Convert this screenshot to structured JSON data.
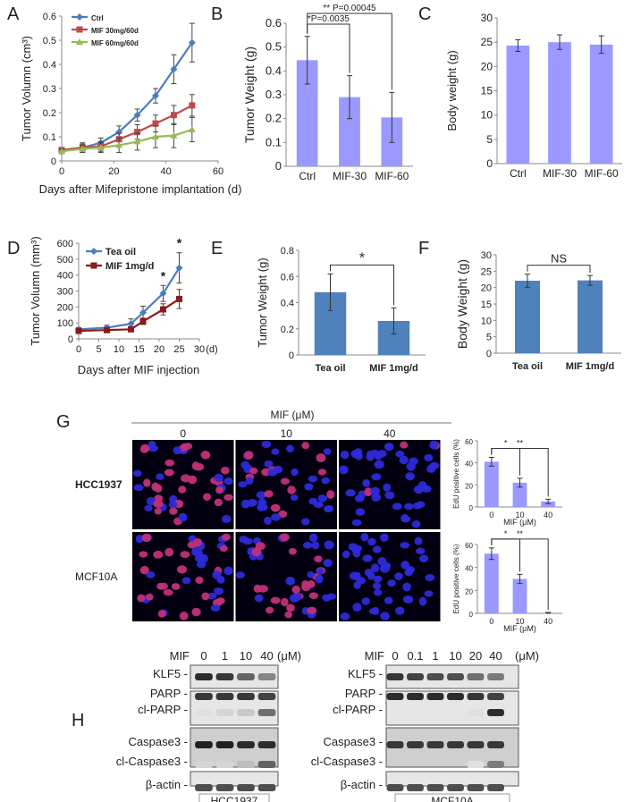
{
  "panel_letters": [
    "A",
    "B",
    "C",
    "D",
    "E",
    "F",
    "G",
    "H"
  ],
  "chart_data": [
    {
      "panel": "A",
      "type": "line",
      "xlabel": "Days after Mifepristone implantation (d)",
      "ylabel": "Tumor Volumn (cm³)",
      "xlim": [
        0,
        60
      ],
      "ylim": [
        0,
        0.6
      ],
      "xticks": [
        0,
        20,
        40,
        60
      ],
      "yticks": [
        0,
        0.1,
        0.2,
        0.3,
        0.4,
        0.5,
        0.6
      ],
      "legend_position": "top-left",
      "series": [
        {
          "name": "Ctrl",
          "color": "#4a7ebb",
          "marker": "diamond",
          "x": [
            0,
            8,
            15,
            22,
            29,
            36,
            43,
            50
          ],
          "y": [
            0.045,
            0.055,
            0.075,
            0.12,
            0.19,
            0.27,
            0.38,
            0.49
          ],
          "err": [
            0.01,
            0.02,
            0.02,
            0.025,
            0.025,
            0.03,
            0.06,
            0.08
          ]
        },
        {
          "name": "MIF 30mg/60d",
          "color": "#be4b48",
          "marker": "square",
          "x": [
            0,
            8,
            15,
            22,
            29,
            36,
            43,
            50
          ],
          "y": [
            0.045,
            0.055,
            0.06,
            0.09,
            0.12,
            0.155,
            0.19,
            0.23
          ],
          "err": [
            0.01,
            0.015,
            0.02,
            0.025,
            0.03,
            0.035,
            0.04,
            0.045
          ]
        },
        {
          "name": "MIF 60mg/60d",
          "color": "#98b954",
          "marker": "triangle",
          "x": [
            0,
            8,
            15,
            22,
            29,
            36,
            43,
            50
          ],
          "y": [
            0.04,
            0.05,
            0.055,
            0.065,
            0.08,
            0.1,
            0.105,
            0.13
          ],
          "err": [
            0.01,
            0.015,
            0.02,
            0.03,
            0.035,
            0.045,
            0.05,
            0.05
          ]
        }
      ]
    },
    {
      "panel": "B",
      "type": "bar",
      "ylabel": "Tumor Weight (g)",
      "categories": [
        "Ctrl",
        "MIF-30",
        "MIF-60"
      ],
      "values": [
        0.445,
        0.29,
        0.205
      ],
      "err": [
        0.1,
        0.09,
        0.105
      ],
      "ylim": [
        0,
        0.6
      ],
      "yticks": [
        0,
        0.1,
        0.2,
        0.3,
        0.4,
        0.5,
        0.6
      ],
      "color": "#9999ff",
      "annotations": [
        {
          "from": 0,
          "to": 1,
          "text": "*P=0.0035"
        },
        {
          "from": 0,
          "to": 2,
          "text": "** P=0.00045"
        }
      ]
    },
    {
      "panel": "C",
      "type": "bar",
      "ylabel": "Body weight (g)",
      "categories": [
        "Ctrl",
        "MIF-30",
        "MIF-60"
      ],
      "values": [
        24.3,
        25.0,
        24.5
      ],
      "err": [
        1.2,
        1.5,
        1.8
      ],
      "ylim": [
        0,
        30
      ],
      "yticks": [
        0,
        5,
        10,
        15,
        20,
        25,
        30
      ],
      "color": "#9999ff"
    },
    {
      "panel": "D",
      "type": "line",
      "xlabel": "Days after MIF injection",
      "ylabel": "Tumor Volumn (mm³)",
      "xunit": "(d)",
      "xlim": [
        0,
        30
      ],
      "ylim": [
        0,
        600
      ],
      "xticks": [
        0,
        5,
        10,
        15,
        20,
        25,
        30
      ],
      "yticks": [
        0,
        100,
        200,
        300,
        400,
        500,
        600
      ],
      "legend_position": "top-left",
      "series": [
        {
          "name": "Tea oil",
          "color": "#4a7ebb",
          "marker": "diamond",
          "x": [
            0,
            7,
            13,
            16,
            21,
            25
          ],
          "y": [
            60,
            70,
            95,
            165,
            285,
            445
          ],
          "err": [
            10,
            15,
            30,
            40,
            50,
            95
          ]
        },
        {
          "name": "MIF 1mg/d",
          "color": "#8b1a1a",
          "marker": "square",
          "x": [
            0,
            7,
            13,
            16,
            21,
            25
          ],
          "y": [
            50,
            55,
            60,
            110,
            185,
            250
          ],
          "err": [
            8,
            10,
            15,
            20,
            35,
            60
          ]
        }
      ],
      "annotations": [
        {
          "x": 21,
          "text": "*"
        },
        {
          "x": 25,
          "text": "*"
        }
      ]
    },
    {
      "panel": "E",
      "type": "bar",
      "ylabel": "Tumor Weight (g)",
      "categories": [
        "Tea oil",
        "MIF 1mg/d"
      ],
      "values": [
        0.48,
        0.26
      ],
      "err": [
        0.14,
        0.1
      ],
      "ylim": [
        0,
        0.8
      ],
      "yticks": [
        0,
        0.2,
        0.4,
        0.6,
        0.8
      ],
      "color": "#4f81bd",
      "annotations": [
        {
          "from": 0,
          "to": 1,
          "text": "*"
        }
      ]
    },
    {
      "panel": "F",
      "type": "bar",
      "ylabel": "Body Weight (g)",
      "categories": [
        "Tea oil",
        "MIF 1mg/d"
      ],
      "values": [
        22.1,
        22.2
      ],
      "err": [
        2.0,
        1.5
      ],
      "ylim": [
        0,
        30
      ],
      "yticks": [
        0,
        5,
        10,
        15,
        20,
        25,
        30
      ],
      "color": "#4f81bd",
      "annotations": [
        {
          "from": 0,
          "to": 1,
          "text": "NS"
        }
      ]
    },
    {
      "panel": "G-HCC1937",
      "type": "bar",
      "ylabel": "EdU positive cells (%)",
      "xlabel": "MIF (μM)",
      "categories": [
        "0",
        "10",
        "40"
      ],
      "values": [
        41,
        22,
        5
      ],
      "err": [
        4,
        4,
        2
      ],
      "ylim": [
        0,
        60
      ],
      "yticks": [
        0,
        20,
        40,
        60
      ],
      "color": "#9999ff",
      "annotations": [
        {
          "from": 0,
          "to": 1,
          "text": "*"
        },
        {
          "from": 0,
          "to": 2,
          "text": "**"
        }
      ]
    },
    {
      "panel": "G-MCF10A",
      "type": "bar",
      "ylabel": "EdU positive cells (%)",
      "xlabel": "MIF (μM)",
      "categories": [
        "0",
        "10",
        "40"
      ],
      "values": [
        52,
        30,
        0.5
      ],
      "err": [
        5,
        4,
        0.3
      ],
      "ylim": [
        0,
        60
      ],
      "yticks": [
        0,
        20,
        40,
        60
      ],
      "color": "#9999ff",
      "annotations": [
        {
          "from": 0,
          "to": 1,
          "text": "*"
        },
        {
          "from": 0,
          "to": 2,
          "text": "**"
        }
      ]
    }
  ],
  "microscopy": {
    "title": "MIF (μM)",
    "concentrations": [
      "0",
      "10",
      "40"
    ],
    "rows": [
      "HCC1937",
      "MCF10A"
    ],
    "red_fraction": [
      [
        0.45,
        0.25,
        0.05
      ],
      [
        0.55,
        0.3,
        0.0
      ]
    ]
  },
  "blots": [
    {
      "cell_line": "HCC1937",
      "mif_label": "MIF",
      "unit": "(μM)",
      "lanes": [
        "0",
        "1",
        "10",
        "40"
      ],
      "bands": [
        {
          "label": "KLF5 -",
          "intensity": [
            0.85,
            0.8,
            0.6,
            0.45
          ]
        },
        {
          "label": "PARP -",
          "intensity": [
            0.8,
            0.8,
            0.8,
            0.75
          ]
        },
        {
          "label": "cl-PARP -",
          "intensity": [
            0.05,
            0.1,
            0.15,
            0.55
          ]
        },
        {
          "label": "Caspase3 -",
          "intensity": [
            0.9,
            0.9,
            0.85,
            0.85
          ]
        },
        {
          "label": "cl-Caspase3 -",
          "intensity": [
            0.1,
            0.1,
            0.2,
            0.6
          ]
        },
        {
          "label": "β-actin -",
          "intensity": [
            0.7,
            0.7,
            0.7,
            0.7
          ]
        }
      ]
    },
    {
      "cell_line": "MCF10A",
      "mif_label": "MIF",
      "unit": "(μM)",
      "lanes": [
        "0",
        "0.1",
        "1",
        "10",
        "20",
        "40"
      ],
      "bands": [
        {
          "label": "KLF5 -",
          "intensity": [
            0.8,
            0.75,
            0.7,
            0.7,
            0.55,
            0.5
          ]
        },
        {
          "label": "PARP -",
          "intensity": [
            0.85,
            0.85,
            0.85,
            0.85,
            0.8,
            0.75
          ]
        },
        {
          "label": "cl-PARP -",
          "intensity": [
            0.0,
            0.0,
            0.0,
            0.0,
            0.05,
            0.85
          ]
        },
        {
          "label": "Caspase3 -",
          "intensity": [
            0.8,
            0.8,
            0.8,
            0.8,
            0.8,
            0.8
          ]
        },
        {
          "label": "cl-Caspase3 -",
          "intensity": [
            0.0,
            0.0,
            0.0,
            0.0,
            0.05,
            0.5
          ]
        },
        {
          "label": "β-actin -",
          "intensity": [
            0.7,
            0.7,
            0.7,
            0.7,
            0.7,
            0.7
          ]
        }
      ]
    }
  ]
}
